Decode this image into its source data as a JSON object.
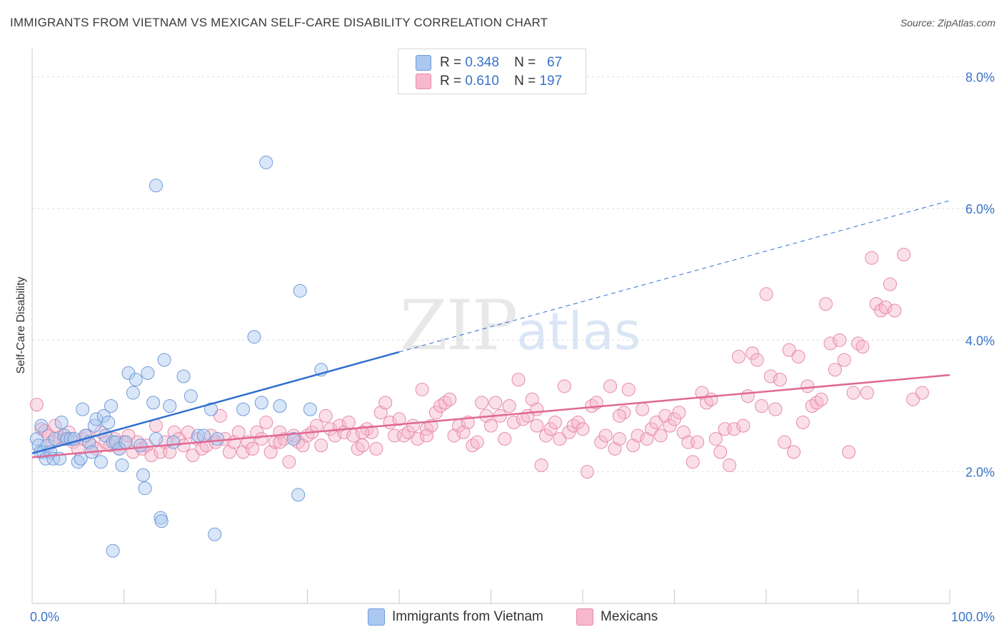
{
  "title": "IMMIGRANTS FROM VIETNAM VS MEXICAN SELF-CARE DISABILITY CORRELATION CHART",
  "source": "Source: ZipAtlas.com",
  "watermark": {
    "zip": "ZIP",
    "atlas": "atlas"
  },
  "legend": {
    "rows": [
      {
        "r_label": "R =",
        "r_value": "0.348",
        "n_label": "N =",
        "n_value": "67",
        "color": "#aac8f0",
        "border": "#6f9bd8"
      },
      {
        "r_label": "R =",
        "r_value": "0.610",
        "n_label": "N =",
        "n_value": "197",
        "color": "#f7b8cc",
        "border": "#e68aa8"
      }
    ]
  },
  "bottom_legend": [
    {
      "label": "Immigrants from Vietnam",
      "color": "#aac8f0",
      "border": "#6f9bd8"
    },
    {
      "label": "Mexicans",
      "color": "#f7b8cc",
      "border": "#e68aa8"
    }
  ],
  "chart_data": {
    "type": "scatter",
    "ylabel": "Self-Care Disability",
    "xlim": [
      0,
      100
    ],
    "ylim": [
      0,
      8.3
    ],
    "x_tick_labels": [
      {
        "value": 0,
        "label": "0.0%"
      },
      {
        "value": 100,
        "label": "100.0%"
      }
    ],
    "y_tick_labels": [
      {
        "value": 2,
        "label": "2.0%"
      },
      {
        "value": 4,
        "label": "4.0%"
      },
      {
        "value": 6,
        "label": "6.0%"
      },
      {
        "value": 8,
        "label": "8.0%"
      }
    ],
    "grid": true,
    "series": [
      {
        "name": "Immigrants from Vietnam",
        "color": "#6f9bd8",
        "fill": "rgba(170,200,240,0.45)",
        "trend": {
          "x0": 0,
          "y0": 2.28,
          "x1": 40,
          "y1": 3.82,
          "dash_to_x": 100,
          "dash_to_y": 6.12,
          "color": "#2f6fcf"
        },
        "points": [
          [
            0.5,
            2.5
          ],
          [
            0.7,
            2.4
          ],
          [
            0.9,
            2.3
          ],
          [
            1.0,
            2.7
          ],
          [
            1.2,
            2.3
          ],
          [
            1.5,
            2.2
          ],
          [
            1.7,
            2.4
          ],
          [
            2.0,
            2.3
          ],
          [
            2.3,
            2.2
          ],
          [
            2.5,
            2.5
          ],
          [
            3.0,
            2.2
          ],
          [
            3.2,
            2.75
          ],
          [
            3.5,
            2.55
          ],
          [
            3.8,
            2.5
          ],
          [
            4.2,
            2.5
          ],
          [
            4.6,
            2.5
          ],
          [
            5.0,
            2.15
          ],
          [
            5.3,
            2.2
          ],
          [
            5.5,
            2.95
          ],
          [
            5.8,
            2.55
          ],
          [
            6.2,
            2.45
          ],
          [
            6.5,
            2.3
          ],
          [
            6.8,
            2.7
          ],
          [
            7.0,
            2.8
          ],
          [
            7.5,
            2.15
          ],
          [
            7.8,
            2.85
          ],
          [
            8.0,
            2.55
          ],
          [
            8.3,
            2.75
          ],
          [
            8.6,
            3.0
          ],
          [
            8.8,
            2.45
          ],
          [
            9.1,
            2.45
          ],
          [
            9.5,
            2.35
          ],
          [
            9.8,
            2.1
          ],
          [
            10.2,
            2.45
          ],
          [
            10.5,
            3.5
          ],
          [
            11.0,
            3.2
          ],
          [
            11.3,
            3.4
          ],
          [
            11.8,
            2.4
          ],
          [
            12.1,
            1.95
          ],
          [
            12.3,
            1.75
          ],
          [
            12.6,
            3.5
          ],
          [
            13.2,
            3.05
          ],
          [
            13.5,
            6.35
          ],
          [
            13.5,
            2.5
          ],
          [
            14.0,
            1.3
          ],
          [
            14.1,
            1.25
          ],
          [
            14.4,
            3.7
          ],
          [
            15.0,
            3.0
          ],
          [
            15.4,
            2.45
          ],
          [
            16.5,
            3.45
          ],
          [
            17.3,
            3.15
          ],
          [
            18.1,
            2.55
          ],
          [
            18.7,
            2.55
          ],
          [
            19.5,
            2.95
          ],
          [
            19.9,
            1.05
          ],
          [
            20.2,
            2.5
          ],
          [
            23.0,
            2.95
          ],
          [
            24.2,
            4.05
          ],
          [
            25.0,
            3.05
          ],
          [
            25.5,
            6.7
          ],
          [
            27.0,
            3.0
          ],
          [
            28.5,
            2.5
          ],
          [
            29.0,
            1.65
          ],
          [
            29.2,
            4.75
          ],
          [
            30.3,
            2.95
          ],
          [
            31.5,
            3.55
          ],
          [
            8.8,
            0.8
          ]
        ]
      },
      {
        "name": "Mexicans",
        "color": "#e68aa8",
        "fill": "rgba(247,184,204,0.45)",
        "trend": {
          "x0": 0,
          "y0": 2.22,
          "x1": 100,
          "y1": 3.47,
          "color": "#e06893"
        },
        "points": [
          [
            0.5,
            3.02
          ],
          [
            1.0,
            2.65
          ],
          [
            1.4,
            2.62
          ],
          [
            1.8,
            2.55
          ],
          [
            2.2,
            2.45
          ],
          [
            2.5,
            2.7
          ],
          [
            3.0,
            2.52
          ],
          [
            3.5,
            2.5
          ],
          [
            4.0,
            2.6
          ],
          [
            4.5,
            2.45
          ],
          [
            5.0,
            2.35
          ],
          [
            5.5,
            2.5
          ],
          [
            6.0,
            2.55
          ],
          [
            6.5,
            2.4
          ],
          [
            7.0,
            2.35
          ],
          [
            7.5,
            2.6
          ],
          [
            8.0,
            2.45
          ],
          [
            8.5,
            2.4
          ],
          [
            9.0,
            2.5
          ],
          [
            9.5,
            2.35
          ],
          [
            10.0,
            2.45
          ],
          [
            10.5,
            2.55
          ],
          [
            11.0,
            2.3
          ],
          [
            11.5,
            2.45
          ],
          [
            12.0,
            2.35
          ],
          [
            12.5,
            2.4
          ],
          [
            13.0,
            2.25
          ],
          [
            13.5,
            2.7
          ],
          [
            14.0,
            2.3
          ],
          [
            14.5,
            2.45
          ],
          [
            15.0,
            2.3
          ],
          [
            15.5,
            2.6
          ],
          [
            16.0,
            2.5
          ],
          [
            16.5,
            2.4
          ],
          [
            17.0,
            2.6
          ],
          [
            17.5,
            2.25
          ],
          [
            18.0,
            2.5
          ],
          [
            18.5,
            2.35
          ],
          [
            19.0,
            2.4
          ],
          [
            19.5,
            2.55
          ],
          [
            20.0,
            2.45
          ],
          [
            20.5,
            2.85
          ],
          [
            21.0,
            2.5
          ],
          [
            21.5,
            2.3
          ],
          [
            22.0,
            2.45
          ],
          [
            22.5,
            2.6
          ],
          [
            23.0,
            2.3
          ],
          [
            23.5,
            2.45
          ],
          [
            24.0,
            2.35
          ],
          [
            24.5,
            2.6
          ],
          [
            25.0,
            2.5
          ],
          [
            25.5,
            2.75
          ],
          [
            26.0,
            2.3
          ],
          [
            26.5,
            2.45
          ],
          [
            27.0,
            2.6
          ],
          [
            27.5,
            2.5
          ],
          [
            28.0,
            2.15
          ],
          [
            28.5,
            2.55
          ],
          [
            29.0,
            2.45
          ],
          [
            29.5,
            2.4
          ],
          [
            30.0,
            2.55
          ],
          [
            30.5,
            2.6
          ],
          [
            31.0,
            2.7
          ],
          [
            31.5,
            2.4
          ],
          [
            32.0,
            2.85
          ],
          [
            32.5,
            2.65
          ],
          [
            33.0,
            2.55
          ],
          [
            33.5,
            2.7
          ],
          [
            34.0,
            2.6
          ],
          [
            34.5,
            2.75
          ],
          [
            35.0,
            2.55
          ],
          [
            35.5,
            2.35
          ],
          [
            36.0,
            2.4
          ],
          [
            36.5,
            2.65
          ],
          [
            37.0,
            2.6
          ],
          [
            37.5,
            2.35
          ],
          [
            38.0,
            2.9
          ],
          [
            38.5,
            3.05
          ],
          [
            39.0,
            2.75
          ],
          [
            39.5,
            2.55
          ],
          [
            40.0,
            2.8
          ],
          [
            40.5,
            2.55
          ],
          [
            41.0,
            2.6
          ],
          [
            41.5,
            2.7
          ],
          [
            42.0,
            2.5
          ],
          [
            42.5,
            3.25
          ],
          [
            43.0,
            2.65
          ],
          [
            43.5,
            2.7
          ],
          [
            44.0,
            2.9
          ],
          [
            44.5,
            3.0
          ],
          [
            45.0,
            3.05
          ],
          [
            45.5,
            3.1
          ],
          [
            46.0,
            2.55
          ],
          [
            46.5,
            2.7
          ],
          [
            47.0,
            2.6
          ],
          [
            47.5,
            2.75
          ],
          [
            48.0,
            2.4
          ],
          [
            48.5,
            2.45
          ],
          [
            49.0,
            3.05
          ],
          [
            49.5,
            2.85
          ],
          [
            50.0,
            2.7
          ],
          [
            50.5,
            3.05
          ],
          [
            51.0,
            2.85
          ],
          [
            51.5,
            2.5
          ],
          [
            52.0,
            3.0
          ],
          [
            52.5,
            2.75
          ],
          [
            53.0,
            3.4
          ],
          [
            53.5,
            2.8
          ],
          [
            54.0,
            2.85
          ],
          [
            54.5,
            3.1
          ],
          [
            55.0,
            2.7
          ],
          [
            55.5,
            2.1
          ],
          [
            56.0,
            2.55
          ],
          [
            56.5,
            2.65
          ],
          [
            57.0,
            2.75
          ],
          [
            57.5,
            2.5
          ],
          [
            58.0,
            3.3
          ],
          [
            58.5,
            2.6
          ],
          [
            59.0,
            2.7
          ],
          [
            59.5,
            2.75
          ],
          [
            60.0,
            2.65
          ],
          [
            60.5,
            2.0
          ],
          [
            61.0,
            3.0
          ],
          [
            61.5,
            3.05
          ],
          [
            62.0,
            2.45
          ],
          [
            62.5,
            2.55
          ],
          [
            63.0,
            3.3
          ],
          [
            63.5,
            2.35
          ],
          [
            64.0,
            2.5
          ],
          [
            64.5,
            2.9
          ],
          [
            65.0,
            3.25
          ],
          [
            65.5,
            2.4
          ],
          [
            66.0,
            2.55
          ],
          [
            66.5,
            2.95
          ],
          [
            67.0,
            2.5
          ],
          [
            67.5,
            2.65
          ],
          [
            68.0,
            2.75
          ],
          [
            68.5,
            2.55
          ],
          [
            69.0,
            2.85
          ],
          [
            69.5,
            2.7
          ],
          [
            70.0,
            2.8
          ],
          [
            70.5,
            2.9
          ],
          [
            71.0,
            2.6
          ],
          [
            71.5,
            2.45
          ],
          [
            72.0,
            2.15
          ],
          [
            72.5,
            2.45
          ],
          [
            73.0,
            3.2
          ],
          [
            73.5,
            3.05
          ],
          [
            74.0,
            3.1
          ],
          [
            74.5,
            2.5
          ],
          [
            75.0,
            2.3
          ],
          [
            75.5,
            2.65
          ],
          [
            76.0,
            2.1
          ],
          [
            76.5,
            2.65
          ],
          [
            77.0,
            3.75
          ],
          [
            77.5,
            2.7
          ],
          [
            78.0,
            3.15
          ],
          [
            78.5,
            3.8
          ],
          [
            79.0,
            3.7
          ],
          [
            79.5,
            3.0
          ],
          [
            80.0,
            4.7
          ],
          [
            80.5,
            3.45
          ],
          [
            81.0,
            2.95
          ],
          [
            81.5,
            3.4
          ],
          [
            82.0,
            2.45
          ],
          [
            82.5,
            3.85
          ],
          [
            83.0,
            2.3
          ],
          [
            83.5,
            3.75
          ],
          [
            84.0,
            2.75
          ],
          [
            84.5,
            3.3
          ],
          [
            85.0,
            3.0
          ],
          [
            85.5,
            3.05
          ],
          [
            86.0,
            3.1
          ],
          [
            86.5,
            4.55
          ],
          [
            87.0,
            3.95
          ],
          [
            87.5,
            3.55
          ],
          [
            88.0,
            4.0
          ],
          [
            88.5,
            3.7
          ],
          [
            89.0,
            2.3
          ],
          [
            89.5,
            3.2
          ],
          [
            90.0,
            3.95
          ],
          [
            90.5,
            3.9
          ],
          [
            91.0,
            3.2
          ],
          [
            91.5,
            5.25
          ],
          [
            92.0,
            4.55
          ],
          [
            92.5,
            4.45
          ],
          [
            93.0,
            4.5
          ],
          [
            93.5,
            4.85
          ],
          [
            94.0,
            4.45
          ],
          [
            95.0,
            5.3
          ],
          [
            96.0,
            3.1
          ],
          [
            97.0,
            3.2
          ],
          [
            64.0,
            2.85
          ],
          [
            55.0,
            2.95
          ],
          [
            43.0,
            2.55
          ],
          [
            36.0,
            2.6
          ],
          [
            27.0,
            2.45
          ]
        ]
      }
    ]
  }
}
